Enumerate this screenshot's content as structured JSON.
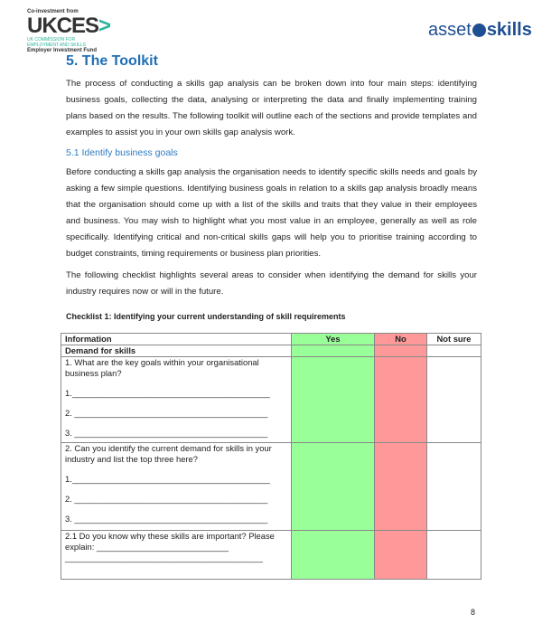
{
  "logos": {
    "left_top": "Co-investment from",
    "left_main": "UKCES",
    "left_sub1": "UK COMMISSION FOR",
    "left_sub2": "EMPLOYMENT AND SKILLS",
    "left_bottom": "Employer Investment Fund",
    "right_a": "asset",
    "right_b": "skills"
  },
  "title": "5. The Toolkit",
  "intro": "The process of conducting a skills gap analysis can be broken down into four main steps: identifying business goals, collecting the data, analysing or interpreting the data and finally implementing training plans based on the results. The following toolkit will outline each of the sections and provide templates and examples to assist you in your own skills gap analysis work.",
  "subtitle": "5.1 Identify business goals",
  "para1": "Before conducting a skills gap analysis the organisation needs to identify specific skills needs and goals by asking a few simple questions. Identifying business goals in relation to a skills gap analysis broadly means that the organisation should come up with a list of the skills and traits that they value in their employees and business. You may wish to highlight what you most value in an employee, generally as well as role specifically. Identifying critical and non-critical skills gaps will help you to prioritise training according to budget constraints, timing requirements or business plan priorities.",
  "para2": "The following checklist highlights several areas to consider when identifying the demand for skills your industry requires now or will in the future.",
  "checklist": {
    "caption": "Checklist 1: Identifying your current understanding of skill requirements",
    "headers": [
      "Information",
      "Yes",
      "No",
      "Not sure"
    ],
    "section": "Demand for skills",
    "q1": "1. What are the key goals within your organisational business plan?",
    "q1_lines": [
      "1.__________________________________________",
      "2. _________________________________________",
      "3. _________________________________________"
    ],
    "q2": "2. Can you identify the current demand for skills in your industry and list the top three here?",
    "q2_lines": [
      "1.__________________________________________",
      "2. _________________________________________",
      "3. _________________________________________"
    ],
    "q3": "2.1 Do you know why these skills are important? Please explain: ____________________________",
    "q3_line": "__________________________________________",
    "colors": {
      "yes": "#99ff99",
      "no": "#ff9999"
    }
  },
  "page_number": "8"
}
